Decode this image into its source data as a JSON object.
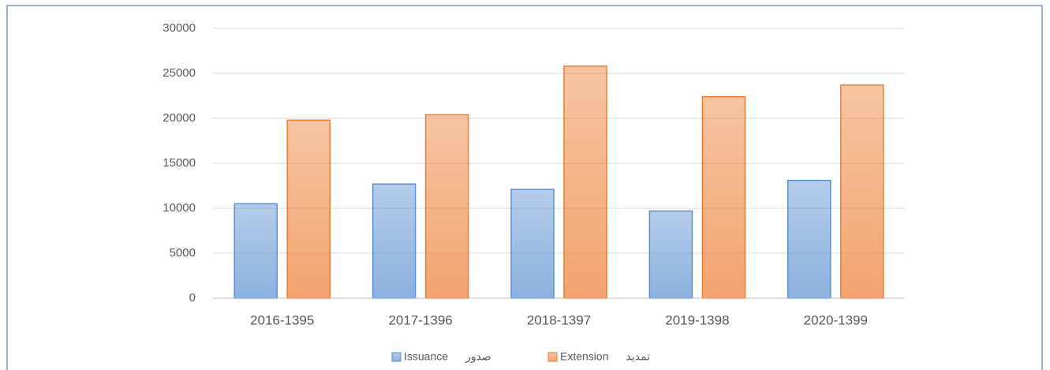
{
  "chart_data": {
    "type": "bar",
    "categories": [
      "2016-1395",
      "2017-1396",
      "2018-1397",
      "2019-1398",
      "2020-1399"
    ],
    "series": [
      {
        "name": "Issuance صدور",
        "color": "#5b8fd0",
        "values": [
          10500,
          12700,
          12100,
          9700,
          13100
        ]
      },
      {
        "name": "Extension تمدید",
        "color": "#ed7d31",
        "values": [
          19800,
          20400,
          25800,
          22400,
          23700
        ]
      }
    ],
    "ylim": [
      0,
      30000
    ],
    "yticks": [
      0,
      5000,
      10000,
      15000,
      20000,
      25000,
      30000
    ],
    "grid": true,
    "legend": "bottom"
  }
}
